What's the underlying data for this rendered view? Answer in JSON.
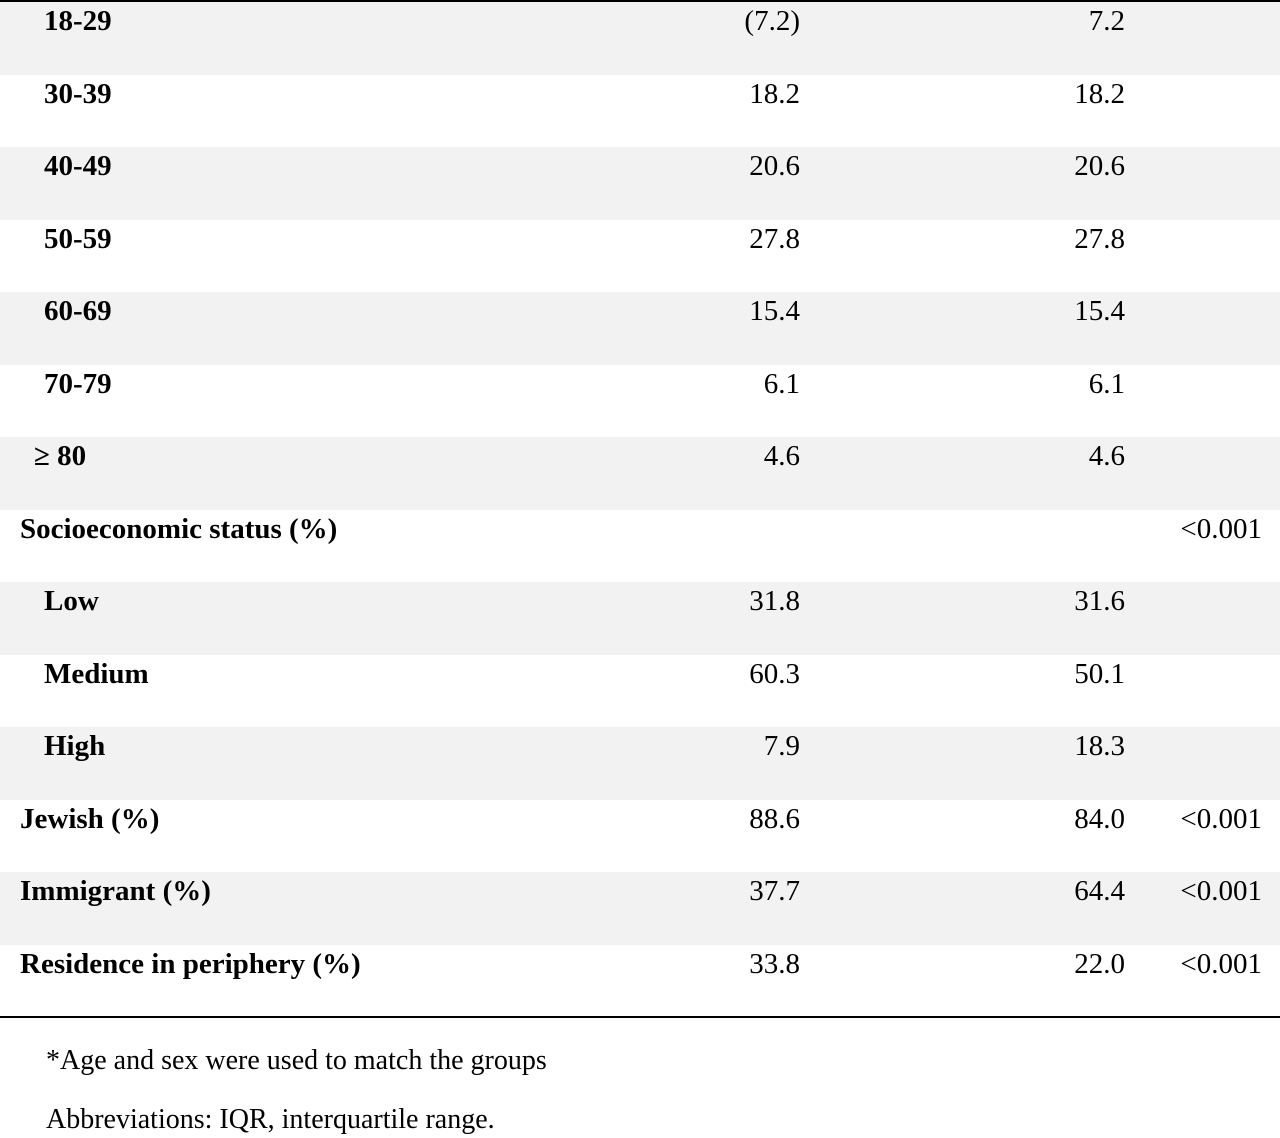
{
  "rows": [
    {
      "label": "18-29",
      "col1": "(7.2)",
      "col2": "7.2",
      "p": ""
    },
    {
      "label": "30-39",
      "col1": "18.2",
      "col2": "18.2",
      "p": ""
    },
    {
      "label": "40-49",
      "col1": "20.6",
      "col2": "20.6",
      "p": ""
    },
    {
      "label": "50-59",
      "col1": "27.8",
      "col2": "27.8",
      "p": ""
    },
    {
      "label": "60-69",
      "col1": "15.4",
      "col2": "15.4",
      "p": ""
    },
    {
      "label": "70-79",
      "col1": "6.1",
      "col2": "6.1",
      "p": ""
    },
    {
      "label": "≥ 80",
      "col1": "4.6",
      "col2": "4.6",
      "p": ""
    },
    {
      "label": "Socioeconomic status (%)",
      "col1": "",
      "col2": "",
      "p": "<0.001"
    },
    {
      "label": "Low",
      "col1": "31.8",
      "col2": "31.6",
      "p": ""
    },
    {
      "label": "Medium",
      "col1": "60.3",
      "col2": "50.1",
      "p": ""
    },
    {
      "label": "High",
      "col1": "7.9",
      "col2": "18.3",
      "p": ""
    },
    {
      "label": "Jewish (%)",
      "col1": "88.6",
      "col2": "84.0",
      "p": "<0.001"
    },
    {
      "label": "Immigrant (%)",
      "col1": "37.7",
      "col2": "64.4",
      "p": "<0.001"
    },
    {
      "label": "Residence in periphery (%)",
      "col1": "33.8",
      "col2": "22.0",
      "p": "<0.001"
    }
  ],
  "footnotes": {
    "matching": "*Age and sex were used to match the groups",
    "abbreviations": "Abbreviations: IQR, interquartile range."
  },
  "colors": {
    "shade": "#f2f2f2",
    "rule": "#000000"
  }
}
